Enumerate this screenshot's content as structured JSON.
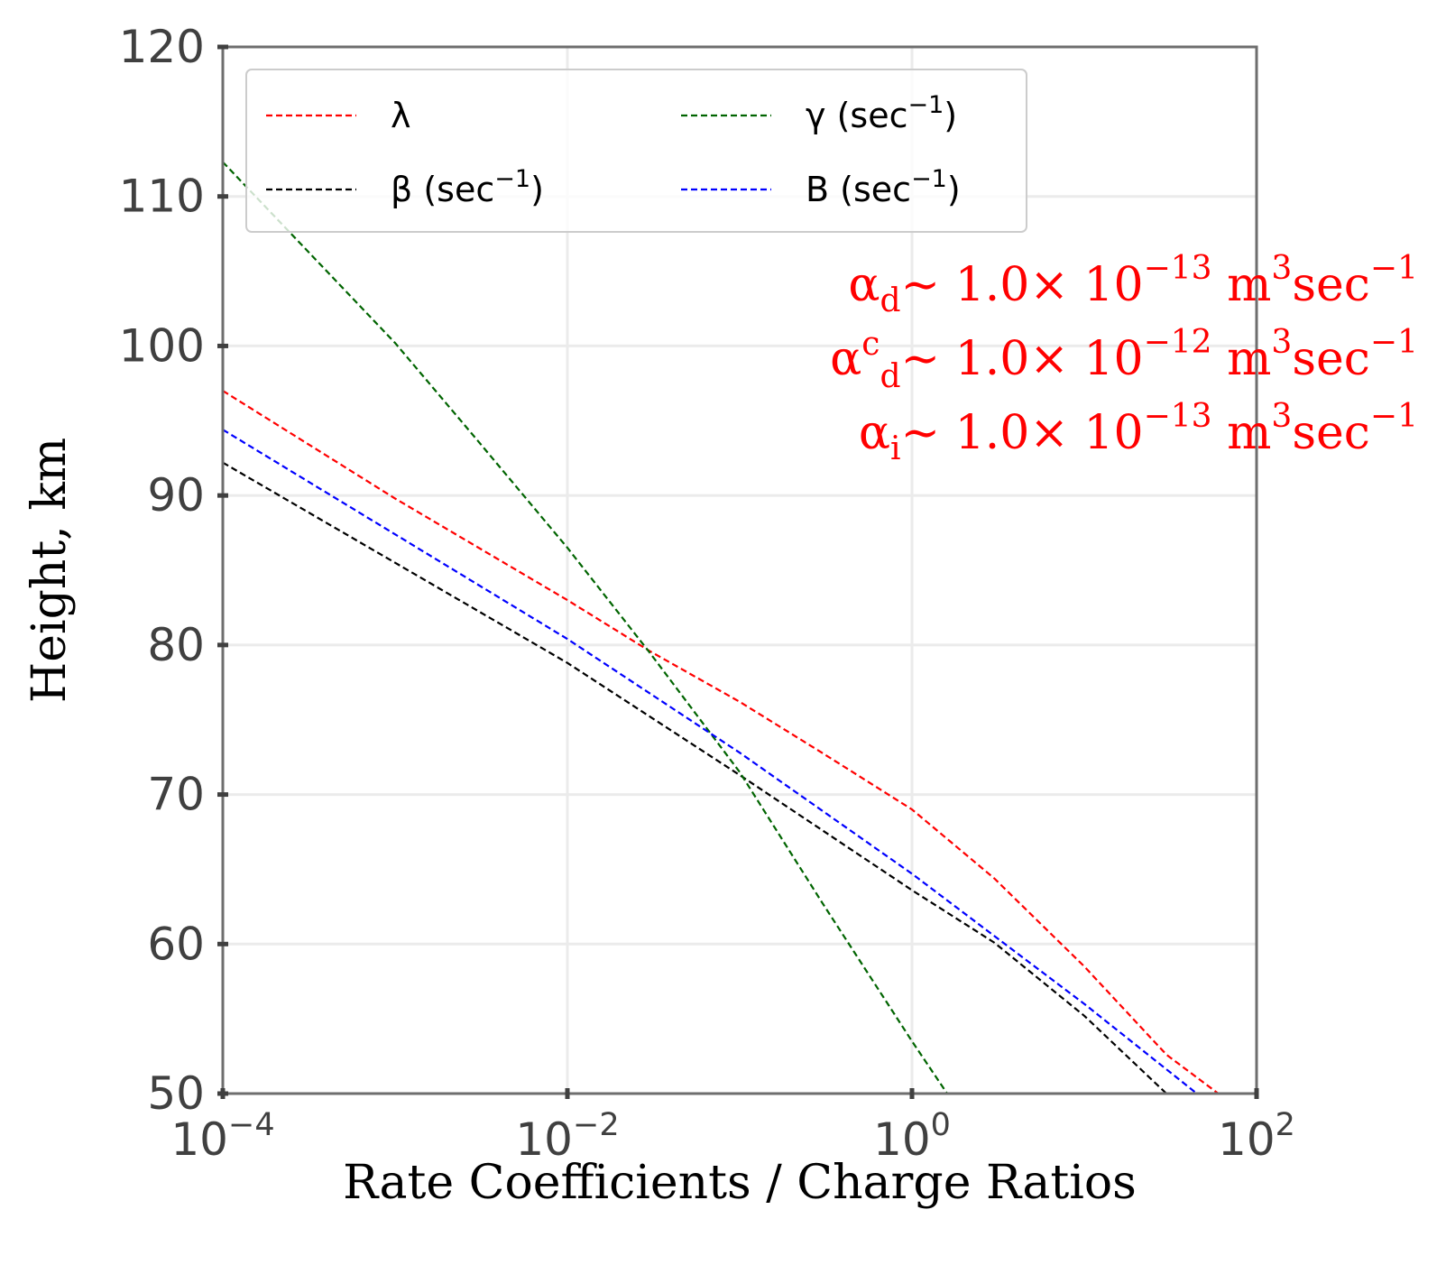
{
  "chart_data": {
    "type": "line",
    "xlabel": "Rate Coefficients / Charge Ratios",
    "ylabel": "Height, km",
    "xscale": "log",
    "xlim": [
      0.0001,
      100
    ],
    "ylim": [
      50,
      120
    ],
    "grid": true,
    "x_tick_labels": [
      {
        "base": "10",
        "exp": "−4"
      },
      {
        "base": "10",
        "exp": "−2"
      },
      {
        "base": "10",
        "exp": "0"
      },
      {
        "base": "10",
        "exp": "2"
      }
    ],
    "y_tick_labels": [
      "50",
      "60",
      "70",
      "80",
      "90",
      "100",
      "110",
      "120"
    ],
    "legend": {
      "location": "upper-left",
      "columns": 2
    },
    "series": [
      {
        "name": "λ",
        "unit": "",
        "color": "#ff0000",
        "x": [
          0.0001,
          0.001,
          0.01,
          0.03,
          0.1,
          0.3,
          1,
          3,
          10,
          30,
          60
        ],
        "y": [
          97,
          89.8,
          83,
          79.6,
          76.2,
          72.8,
          69,
          64.4,
          58.5,
          52.6,
          50
        ]
      },
      {
        "name": "β",
        "unit": "(sec⁻¹)",
        "color": "#000000",
        "x": [
          0.0001,
          0.001,
          0.01,
          0.1,
          1,
          3,
          10,
          30
        ],
        "y": [
          92.2,
          85.5,
          78.8,
          71.3,
          63.6,
          60.1,
          55.2,
          50
        ]
      },
      {
        "name": "γ",
        "unit": "(sec⁻¹)",
        "color": "#006400",
        "x": [
          0.0001,
          0.001,
          0.003,
          0.01,
          0.03,
          0.1,
          0.3,
          1,
          1.6
        ],
        "y": [
          112.3,
          100.2,
          93.7,
          86.5,
          79.5,
          71.5,
          62.8,
          53.5,
          50
        ]
      },
      {
        "name": "B",
        "unit": "(sec⁻¹)",
        "color": "#0000ff",
        "x": [
          0.0001,
          0.001,
          0.01,
          0.1,
          1,
          10,
          45
        ],
        "y": [
          94.4,
          87.4,
          80.4,
          72.8,
          64.7,
          56,
          50
        ]
      }
    ],
    "annotations": [
      {
        "sym": "α",
        "sub": "d",
        "sup": "",
        "mid": "∼  1.0× 10",
        "exp": "−13",
        "unit1": " m",
        "unit1_exp": "3",
        "unit2": "sec",
        "unit2_exp": "−1",
        "color": "#ff0000"
      },
      {
        "sym": "α",
        "sub": "d",
        "sup": "c",
        "mid": "∼  1.0× 10",
        "exp": "−12",
        "unit1": " m",
        "unit1_exp": "3",
        "unit2": "sec",
        "unit2_exp": "−1",
        "color": "#ff0000"
      },
      {
        "sym": "α",
        "sub": "i",
        "sup": "",
        "mid": "∼  1.0× 10",
        "exp": "−13",
        "unit1": " m",
        "unit1_exp": "3",
        "unit2": "sec",
        "unit2_exp": "−1",
        "color": "#ff0000"
      }
    ]
  }
}
